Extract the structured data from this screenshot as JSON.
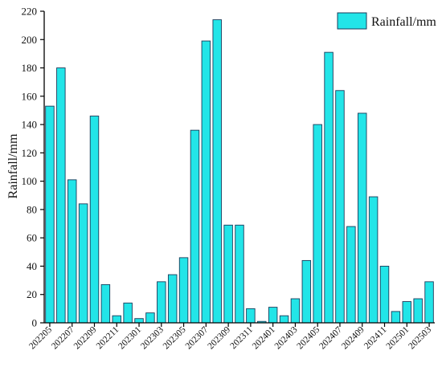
{
  "chart_data": {
    "type": "bar",
    "ylabel": "Rainfall/mm",
    "xlabel": "",
    "ylim": [
      0,
      220
    ],
    "yticks": [
      0,
      20,
      40,
      60,
      80,
      100,
      120,
      140,
      160,
      180,
      200,
      220
    ],
    "legend": {
      "position": "top-right"
    },
    "colors": {
      "bar_fill": "#22E5E8",
      "bar_stroke": "#1b3b5a",
      "axis": "#000000"
    },
    "series": [
      {
        "name": "Rainfall/mm",
        "values": [
          153,
          180,
          101,
          84,
          146,
          27,
          5,
          14,
          3,
          7,
          29,
          34,
          46,
          136,
          199,
          214,
          69,
          69,
          10,
          1,
          11,
          5,
          17,
          44,
          140,
          191,
          164,
          68,
          148,
          89,
          40,
          8,
          15,
          17,
          29
        ]
      }
    ],
    "x_tick_labels": [
      "202205",
      "202207",
      "202209",
      "202211",
      "202301",
      "202303",
      "202305",
      "202307",
      "202309",
      "202311",
      "202401",
      "202403",
      "202405",
      "202407",
      "202409",
      "202411",
      "202501",
      "202503"
    ],
    "x_tick_positions": [
      0,
      2,
      4,
      6,
      8,
      10,
      12,
      14,
      16,
      18,
      20,
      22,
      24,
      26,
      28,
      30,
      32,
      34
    ]
  }
}
